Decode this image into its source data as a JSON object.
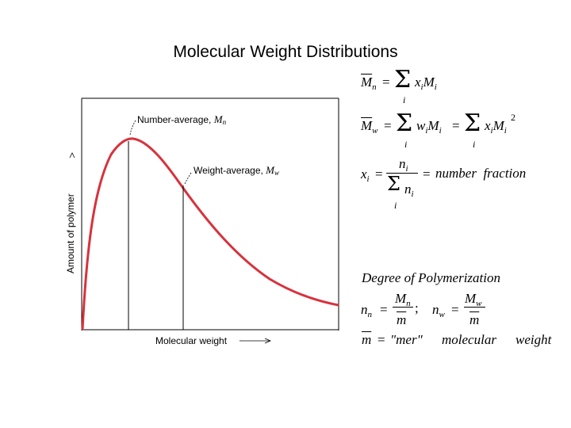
{
  "slide": {
    "title": "Molecular Weight Distributions"
  },
  "chart_data": {
    "type": "line",
    "xlabel": "Molecular weight",
    "ylabel": "Amount of polymer",
    "annotations": [
      {
        "label": "Number-average, ",
        "symbol": "M",
        "subscript": "n"
      },
      {
        "label": "Weight-average, ",
        "symbol": "M",
        "subscript": "w"
      }
    ],
    "series": [
      {
        "color": "#d8323c"
      }
    ],
    "grid": false
  },
  "equations": {
    "mn": {
      "lhs": "M",
      "lhs_sub": "n",
      "eq": "=",
      "sum_idx": "i",
      "rhs": "x",
      "rhs_sub": "i",
      "rhs2": "M",
      "rhs2_sub": "i"
    },
    "mw": {
      "lhs": "M",
      "lhs_sub": "w",
      "eq": "=",
      "sum_idx": "i",
      "t1": "w",
      "t1_sub": "i",
      "t2": "M",
      "t2_sub": "i",
      "eq2": "=",
      "t3": "x",
      "t3_sub": "i",
      "t4": "M",
      "t4_sub": "i",
      "t4_sup": "2"
    },
    "xi": {
      "lhs": "x",
      "lhs_sub": "i",
      "eq": "=",
      "num": "n",
      "num_sub": "i",
      "den": "n",
      "den_sub": "i",
      "den_idx": "i",
      "eq2": "=",
      "text": "number  fraction"
    },
    "degree": {
      "heading": "Degree of Polymerization",
      "nn": "n",
      "nn_sub": "n",
      "eq": "=",
      "num1": "M",
      "num1_sub": "n",
      "den1": "m",
      "sep": ";",
      "nw": "n",
      "nw_sub": "w",
      "num2": "M",
      "num2_sub": "w",
      "den2": "m",
      "mbar": "m",
      "eq3": "=",
      "mer": "\"mer\"",
      "mol": "molecular",
      "wt": "weight"
    }
  }
}
